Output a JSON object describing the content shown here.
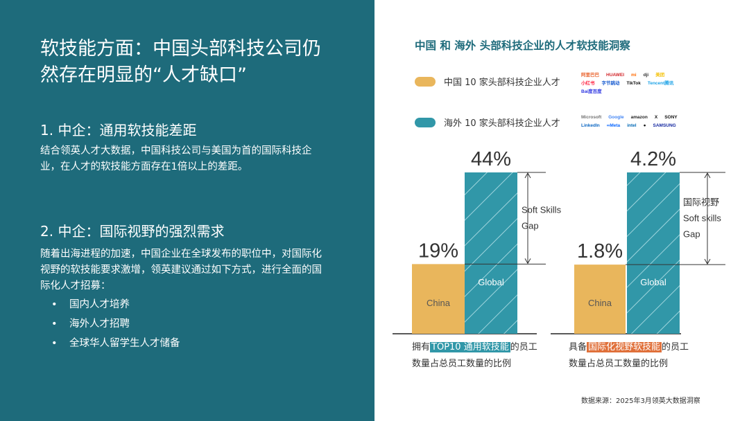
{
  "left": {
    "title": "软技能方面：中国头部科技公司仍然存在明显的“人才缺口”",
    "section1": {
      "heading": "1. 中企：通用软技能差距",
      "body": "结合领英人才大数据，中国科技公司与美国为首的国际科技企业，在人才的软技能方面存在1倍以上的差距。"
    },
    "section2": {
      "heading": "2. 中企：国际视野的强烈需求",
      "body": "随着出海进程的加速，中国企业在全球发布的职位中，对国际化视野的软技能要求激增，领英建议通过如下方式，进行全面的国际化人才招募：",
      "bullets": [
        "国内人才培养",
        "海外人才招聘",
        "全球华人留学生人才储备"
      ]
    }
  },
  "right": {
    "title": "中国 和 海外 头部科技企业的人才软技能洞察",
    "legend": [
      {
        "label": "中国 10 家头部科技企业人才",
        "color": "#e9b65c",
        "logos": [
          "阿里巴巴",
          "HUAWEI",
          "mi",
          "dji",
          "美团",
          "小红书",
          "字节跳动",
          "TikTok",
          "Tencent腾讯",
          "Bai度百度"
        ]
      },
      {
        "label": "海外 10 家头部科技企业人才",
        "color": "#3197a8",
        "logos": [
          "Microsoft",
          "Google",
          "amazon",
          "X",
          "SONY",
          "LinkedIn",
          "∞Meta",
          "intel",
          "",
          "SAMSUNG"
        ]
      }
    ],
    "captions": {
      "left": {
        "pre": "拥有",
        "highlight": "TOP10 通用软技能",
        "post": "的员工",
        "line2": "数量占总员工数量的比例",
        "highlight_color": "#3197a8"
      },
      "right": {
        "pre": "具备",
        "highlight": "国际化视野软技能",
        "post": "的员工",
        "line2": "数量占总员工数量的比例",
        "highlight_color": "#e0703a"
      }
    },
    "source": "数据来源：2025年3月领英大数据洞察"
  },
  "chart_data": [
    {
      "type": "bar",
      "categories": [
        "China",
        "Global"
      ],
      "values": [
        19,
        44
      ],
      "value_labels": [
        "19%",
        "44%"
      ],
      "colors": [
        "#e9b65c",
        "#3197a8"
      ],
      "gap_label": [
        "Soft Skills",
        "Gap"
      ],
      "ylim": [
        0,
        44
      ]
    },
    {
      "type": "bar",
      "categories": [
        "China",
        "Global"
      ],
      "values": [
        1.8,
        4.2
      ],
      "value_labels": [
        "1.8%",
        "4.2%"
      ],
      "colors": [
        "#e9b65c",
        "#3197a8"
      ],
      "gap_label": [
        "国际视野",
        "Soft skills",
        "Gap"
      ],
      "ylim": [
        0,
        4.2
      ]
    }
  ]
}
